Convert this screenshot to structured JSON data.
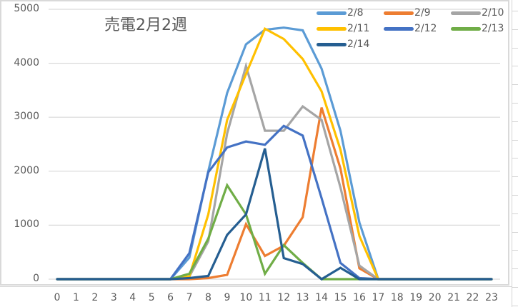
{
  "chart_data": {
    "type": "line",
    "title": "売電2月2週",
    "xlabel": "",
    "ylabel": "",
    "x": [
      0,
      1,
      2,
      3,
      4,
      5,
      6,
      7,
      8,
      9,
      10,
      11,
      12,
      13,
      14,
      15,
      16,
      17,
      18,
      19,
      20,
      21,
      22,
      23
    ],
    "ylim": [
      0,
      5000
    ],
    "yticks": [
      0,
      1000,
      2000,
      3000,
      4000,
      5000
    ],
    "grid": true,
    "legend_position": "top-right",
    "series": [
      {
        "name": "2/8",
        "color": "#5B9BD5",
        "values": [
          0,
          0,
          0,
          0,
          0,
          0,
          0,
          400,
          2000,
          3450,
          4350,
          4620,
          4660,
          4610,
          3900,
          2750,
          1050,
          0,
          0,
          0,
          0,
          0,
          0,
          0
        ]
      },
      {
        "name": "2/9",
        "color": "#ED7D31",
        "values": [
          0,
          0,
          0,
          0,
          0,
          0,
          0,
          0,
          20,
          80,
          1020,
          430,
          620,
          1150,
          3180,
          2050,
          200,
          0,
          0,
          0,
          0,
          0,
          0,
          0
        ]
      },
      {
        "name": "2/10",
        "color": "#A5A5A5",
        "values": [
          0,
          0,
          0,
          0,
          0,
          0,
          0,
          50,
          700,
          2700,
          3950,
          2750,
          2750,
          3200,
          2950,
          1700,
          250,
          0,
          0,
          0,
          0,
          0,
          0,
          0
        ]
      },
      {
        "name": "2/11",
        "color": "#FFC000",
        "values": [
          0,
          0,
          0,
          0,
          0,
          0,
          0,
          50,
          1200,
          2950,
          3800,
          4640,
          4450,
          4080,
          3480,
          2400,
          800,
          0,
          0,
          0,
          0,
          0,
          0,
          0
        ]
      },
      {
        "name": "2/12",
        "color": "#4472C4",
        "values": [
          0,
          0,
          0,
          0,
          0,
          0,
          0,
          480,
          1980,
          2440,
          2550,
          2490,
          2840,
          2660,
          1500,
          300,
          20,
          0,
          0,
          0,
          0,
          0,
          0,
          0
        ]
      },
      {
        "name": "2/13",
        "color": "#70AD47",
        "values": [
          0,
          0,
          0,
          0,
          0,
          0,
          0,
          100,
          750,
          1740,
          1200,
          100,
          630,
          300,
          0,
          0,
          0,
          0,
          0,
          0,
          0,
          0,
          0,
          0
        ]
      },
      {
        "name": "2/14",
        "color": "#255E91",
        "values": [
          0,
          0,
          0,
          0,
          0,
          0,
          0,
          20,
          60,
          820,
          1200,
          2420,
          390,
          280,
          0,
          210,
          0,
          0,
          0,
          0,
          0,
          0,
          0,
          0
        ]
      }
    ]
  },
  "legend": [
    {
      "label": "2/8",
      "color": "#5B9BD5"
    },
    {
      "label": "2/9",
      "color": "#ED7D31"
    },
    {
      "label": "2/10",
      "color": "#A5A5A5"
    },
    {
      "label": "2/11",
      "color": "#FFC000"
    },
    {
      "label": "2/12",
      "color": "#4472C4"
    },
    {
      "label": "2/13",
      "color": "#70AD47"
    },
    {
      "label": "2/14",
      "color": "#255E91"
    }
  ],
  "axis": {
    "y_labels": [
      "5000",
      "4000",
      "3000",
      "2000",
      "1000",
      "0"
    ],
    "x_labels": [
      "0",
      "1",
      "2",
      "3",
      "4",
      "5",
      "6",
      "7",
      "8",
      "9",
      "10",
      "11",
      "12",
      "13",
      "14",
      "15",
      "16",
      "17",
      "18",
      "19",
      "20",
      "21",
      "22",
      "23"
    ]
  },
  "colors": {
    "gridline": "#d9d9d9",
    "axis_text": "#595959",
    "frame": "#d9d9d9"
  }
}
